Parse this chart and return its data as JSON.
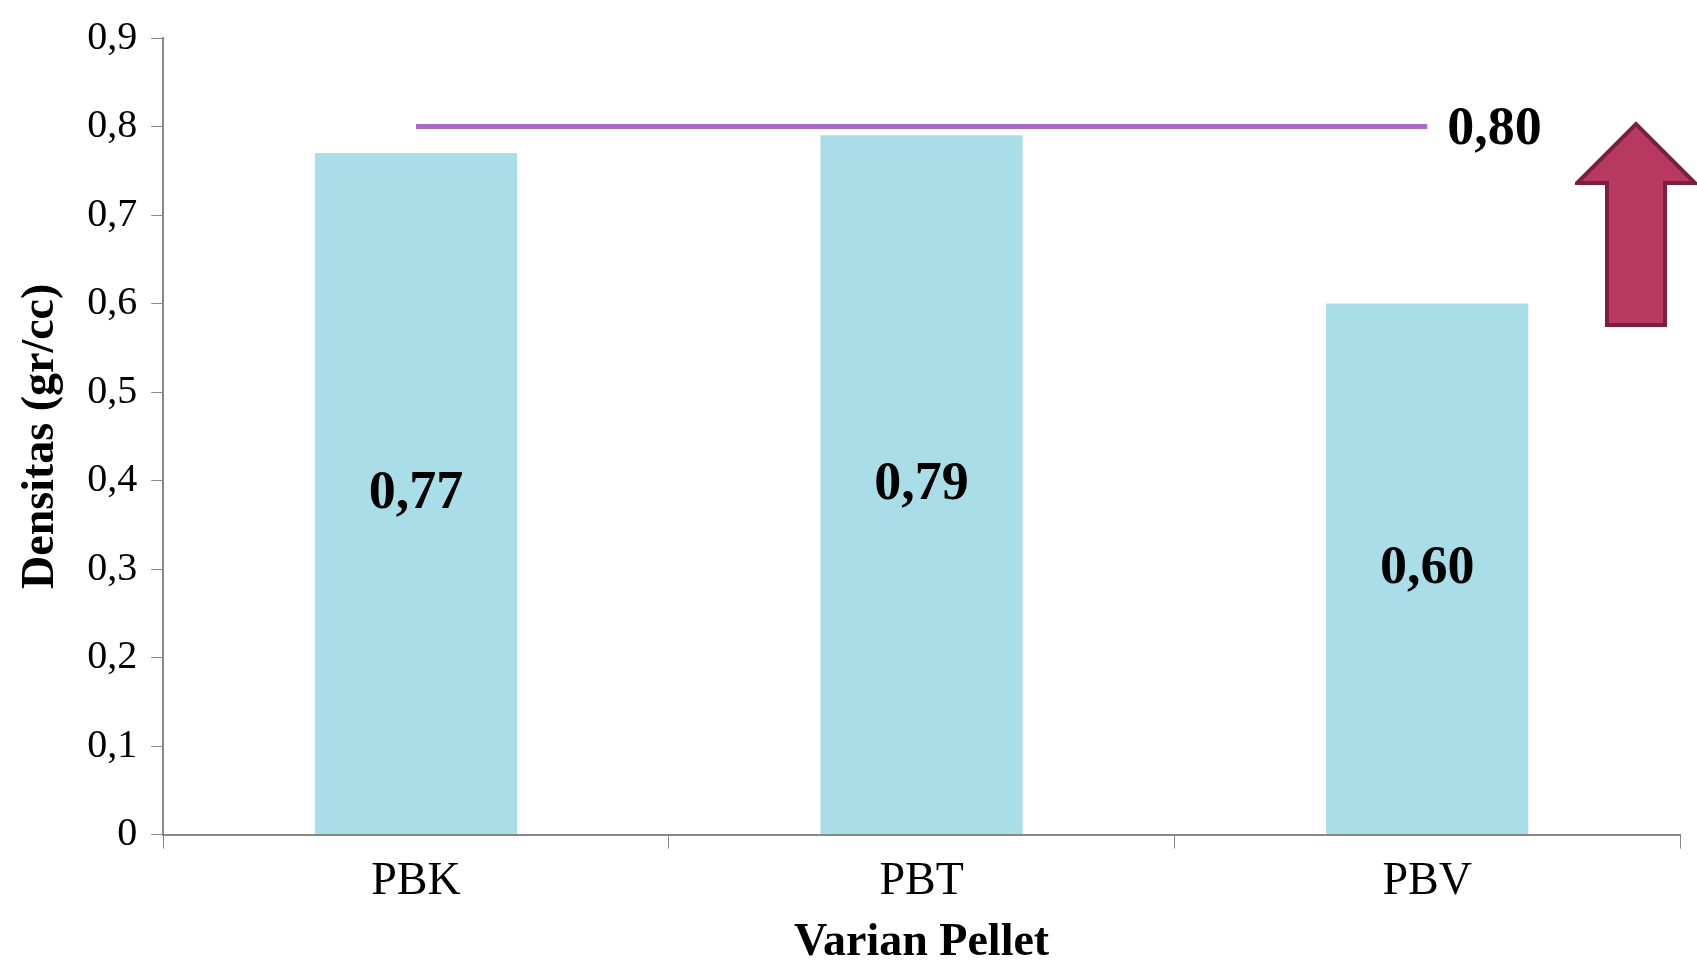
{
  "chart_data": {
    "type": "bar",
    "xlabel": "Varian Pellet",
    "ylabel": "Densitas (gr/cc)",
    "categories": [
      "PBK",
      "PBT",
      "PBV"
    ],
    "values": [
      0.77,
      0.79,
      0.6
    ],
    "value_labels": [
      "0,77",
      "0,79",
      "0,60"
    ],
    "color": "#a9dde8",
    "ylim": [
      0,
      0.9
    ],
    "yticks": [
      0,
      {
        "value": 0.1,
        "label": "0,1"
      },
      {
        "value": 0.2,
        "label": "0,2"
      },
      {
        "value": 0.3,
        "label": "0,3"
      },
      {
        "value": 0.4,
        "label": "0,4"
      },
      {
        "value": 0.5,
        "label": "0,5"
      },
      {
        "value": 0.6,
        "label": "0,6"
      },
      {
        "value": 0.7,
        "label": "0,7"
      },
      {
        "value": 0.8,
        "label": "0,8"
      },
      {
        "value": 0.9,
        "label": "0,9"
      }
    ],
    "ref_lines": [
      {
        "axis": "y",
        "value": 0.8,
        "label": "0,80",
        "color": "#a86bc4"
      }
    ],
    "grid": false,
    "legend": false
  }
}
